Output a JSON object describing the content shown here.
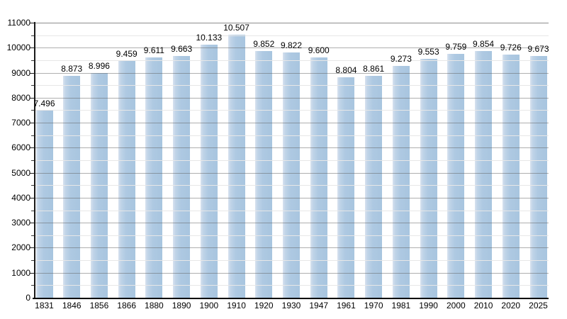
{
  "chart_data": {
    "type": "bar",
    "title": "",
    "xlabel": "",
    "ylabel": "",
    "categories": [
      "1831",
      "1846",
      "1856",
      "1866",
      "1880",
      "1890",
      "1900",
      "1910",
      "1920",
      "1930",
      "1947",
      "1961",
      "1970",
      "1981",
      "1990",
      "2000",
      "2010",
      "2020",
      "2025"
    ],
    "values": [
      7496,
      8873,
      8996,
      9459,
      9611,
      9663,
      10133,
      10507,
      9852,
      9822,
      9600,
      8804,
      8861,
      9273,
      9553,
      9759,
      9854,
      9726,
      9673
    ],
    "bar_labels": [
      "7.496",
      "8.873",
      "8.996",
      "9.459",
      "9.611",
      "9.663",
      "10.133",
      "10.507",
      "9.852",
      "9.822",
      "9.600",
      "8.804",
      "8.861",
      "9.273",
      "9.553",
      "9.759",
      "9.854",
      "9.726",
      "9.673"
    ],
    "ylim": [
      0,
      11000
    ],
    "y_tick_step": 1000,
    "y_minor_step": 500,
    "y_tick_labels": [
      "0",
      "1000",
      "2000",
      "3000",
      "4000",
      "5000",
      "6000",
      "7000",
      "8000",
      "9000",
      "10000",
      "11000"
    ],
    "grid": "horizontal major every 1000 + minor every 500, drawn over bars",
    "legend": "none",
    "colors": {
      "bar_fill": "#aec9e2",
      "bar_fill_light": "#d8e2ef",
      "grid_major": "#a8a8a8",
      "grid_minor": "#e7e7e7",
      "grid_top": "#8c8c8c",
      "axis": "#000000",
      "text": "#000000",
      "background": "#ffffff"
    }
  }
}
